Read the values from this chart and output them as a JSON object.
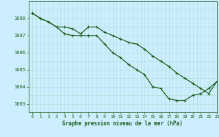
{
  "title": "Graphe pression niveau de la mer (hPa)",
  "background_color": "#cceeff",
  "grid_color": "#aaddcc",
  "line_color": "#1a5c1a",
  "marker_color": "#1a5c1a",
  "xlim": [
    -0.5,
    23
  ],
  "ylim": [
    1002.5,
    1009.0
  ],
  "yticks": [
    1003,
    1004,
    1005,
    1006,
    1007,
    1008
  ],
  "xticks": [
    0,
    1,
    2,
    3,
    4,
    5,
    6,
    7,
    8,
    9,
    10,
    11,
    12,
    13,
    14,
    15,
    16,
    17,
    18,
    19,
    20,
    21,
    22,
    23
  ],
  "series": [
    {
      "x": [
        0,
        1,
        2,
        3,
        4,
        5,
        6,
        7,
        8,
        9,
        10,
        11,
        12,
        13,
        14,
        15,
        16,
        17,
        18,
        19,
        20,
        21,
        22,
        23
      ],
      "y": [
        1008.3,
        1008.0,
        1007.8,
        1007.5,
        1007.5,
        1007.4,
        1007.1,
        1007.5,
        1007.5,
        1007.2,
        1007.0,
        1006.8,
        1006.6,
        1006.5,
        1006.2,
        1005.8,
        1005.5,
        1005.2,
        1004.8,
        1004.5,
        1004.2,
        1003.9,
        1003.6,
        1004.3
      ]
    },
    {
      "x": [
        0,
        1,
        2,
        3,
        4,
        5,
        6,
        7,
        8,
        9,
        10,
        11,
        12,
        13,
        14,
        15,
        16,
        17,
        18,
        19,
        20,
        21,
        22,
        23
      ],
      "y": [
        1008.3,
        1008.0,
        1007.8,
        1007.5,
        1007.1,
        1007.0,
        1007.0,
        1007.0,
        1007.0,
        1006.5,
        1006.0,
        1005.7,
        1005.3,
        1005.0,
        1004.7,
        1004.0,
        1003.9,
        1003.3,
        1003.2,
        1003.2,
        1003.5,
        1003.6,
        1003.9,
        1004.3
      ]
    }
  ]
}
